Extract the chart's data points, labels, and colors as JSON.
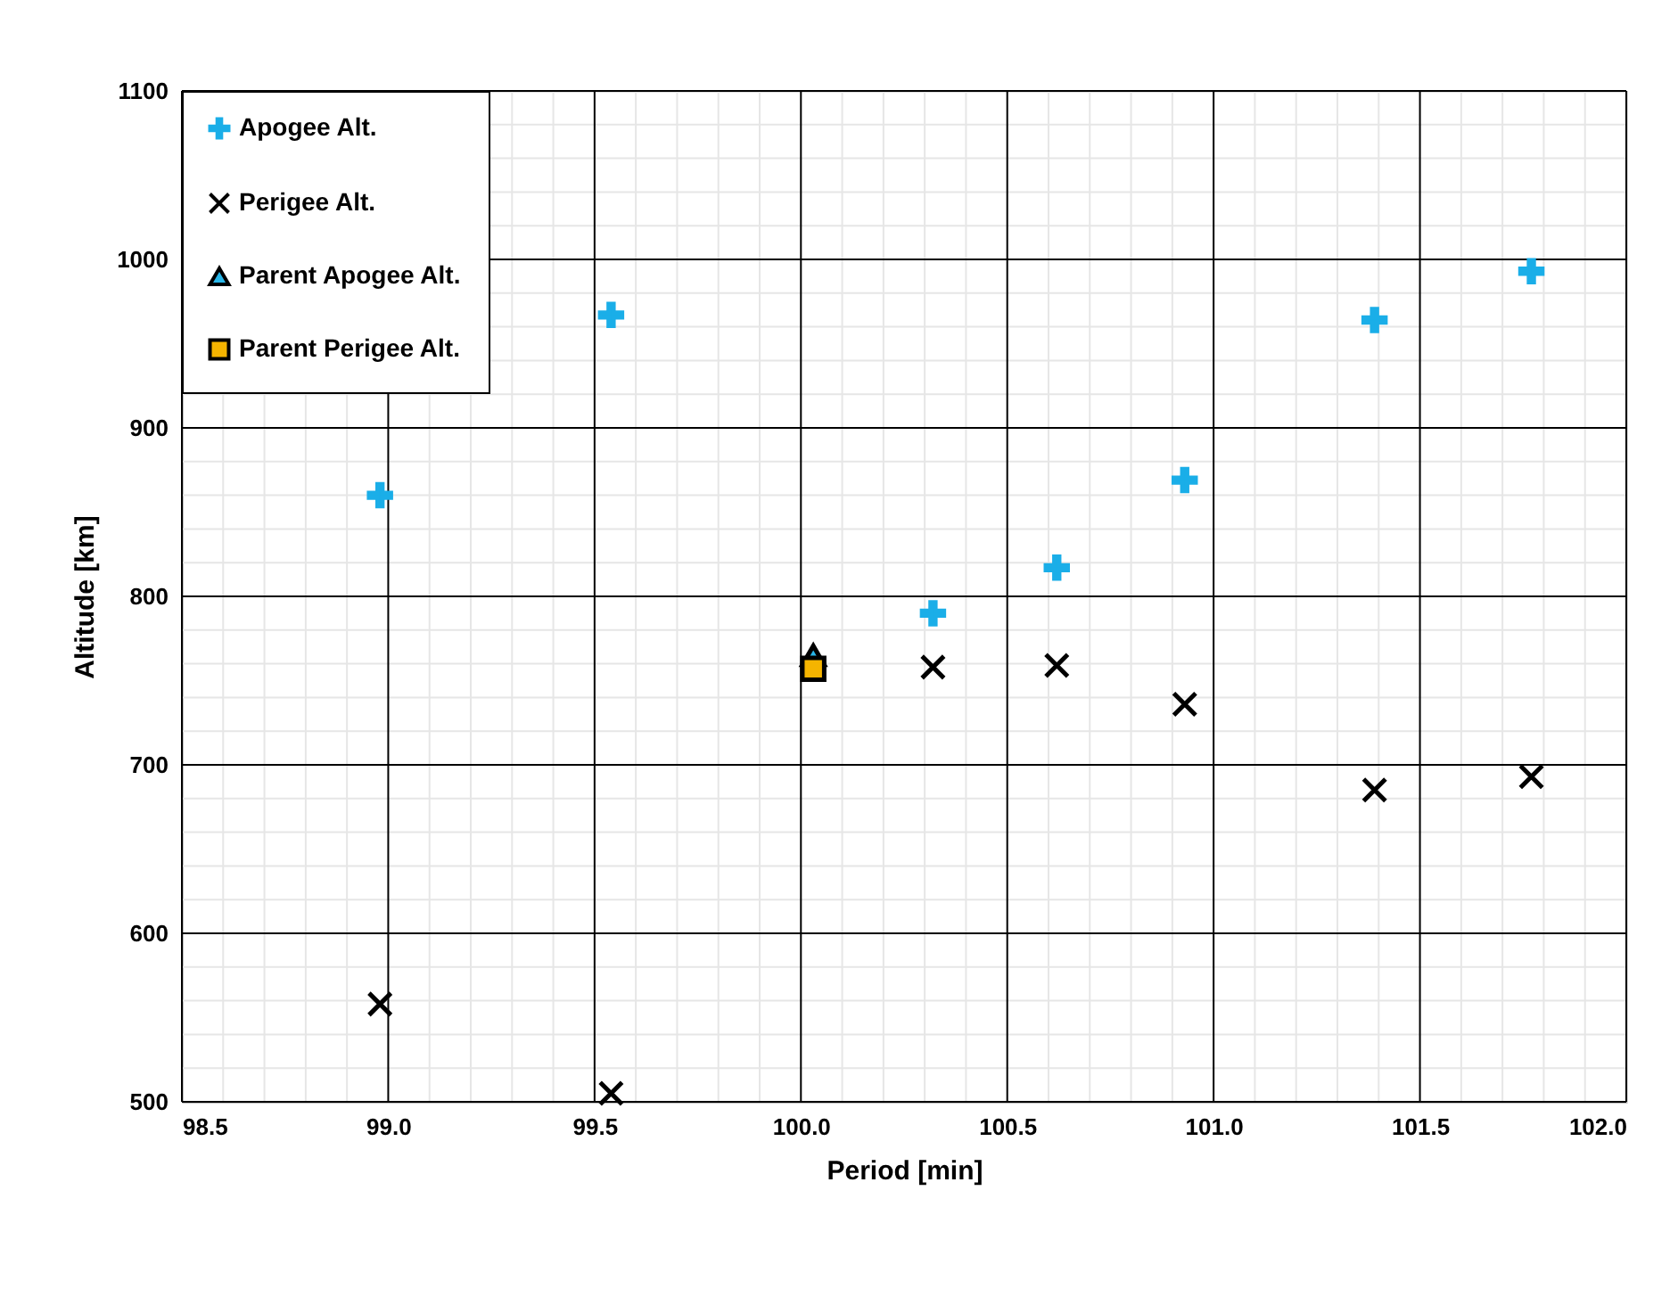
{
  "chart_data": {
    "type": "scatter",
    "xlabel": "Period [min]",
    "ylabel": "Altitude [km]",
    "xlim": [
      98.5,
      102.0
    ],
    "xticks": [
      {
        "value": 98.5,
        "label": "98.5"
      },
      {
        "value": 99.0,
        "label": "99.0"
      },
      {
        "value": 99.5,
        "label": "99.5"
      },
      {
        "value": 100.0,
        "label": "100.0"
      },
      {
        "value": 100.5,
        "label": "100.5"
      },
      {
        "value": 101.0,
        "label": "101.0"
      },
      {
        "value": 101.5,
        "label": "101.5"
      },
      {
        "value": 102.0,
        "label": "102.0"
      }
    ],
    "ylim": [
      500,
      1100
    ],
    "yticks": [
      500,
      600,
      700,
      800,
      900,
      1000,
      1100
    ],
    "grid": true,
    "legend": "top left",
    "series": [
      {
        "name": "Apogee Alt.",
        "color": "#1aaee8",
        "marker": "cross",
        "x": [
          98.98,
          99.54,
          100.03,
          100.32,
          100.62,
          100.93,
          101.39,
          101.77
        ],
        "values": [
          860,
          967,
          null,
          790,
          817,
          869,
          964,
          993
        ]
      },
      {
        "name": "Perigee Alt.",
        "color": "#000000",
        "marker": "x",
        "x": [
          98.98,
          99.54,
          100.03,
          100.32,
          100.62,
          100.93,
          101.39,
          101.77
        ],
        "values": [
          558,
          505,
          null,
          758,
          759,
          736,
          685,
          693
        ]
      },
      {
        "name": "Parent Apogee Alt.",
        "color": "#29b6e8",
        "marker": "triangle",
        "x": [
          100.03
        ],
        "values": [
          765
        ]
      },
      {
        "name": "Parent Perigee Alt.",
        "color": "#f5b400",
        "marker": "square",
        "x": [
          100.03
        ],
        "values": [
          757
        ]
      }
    ]
  }
}
